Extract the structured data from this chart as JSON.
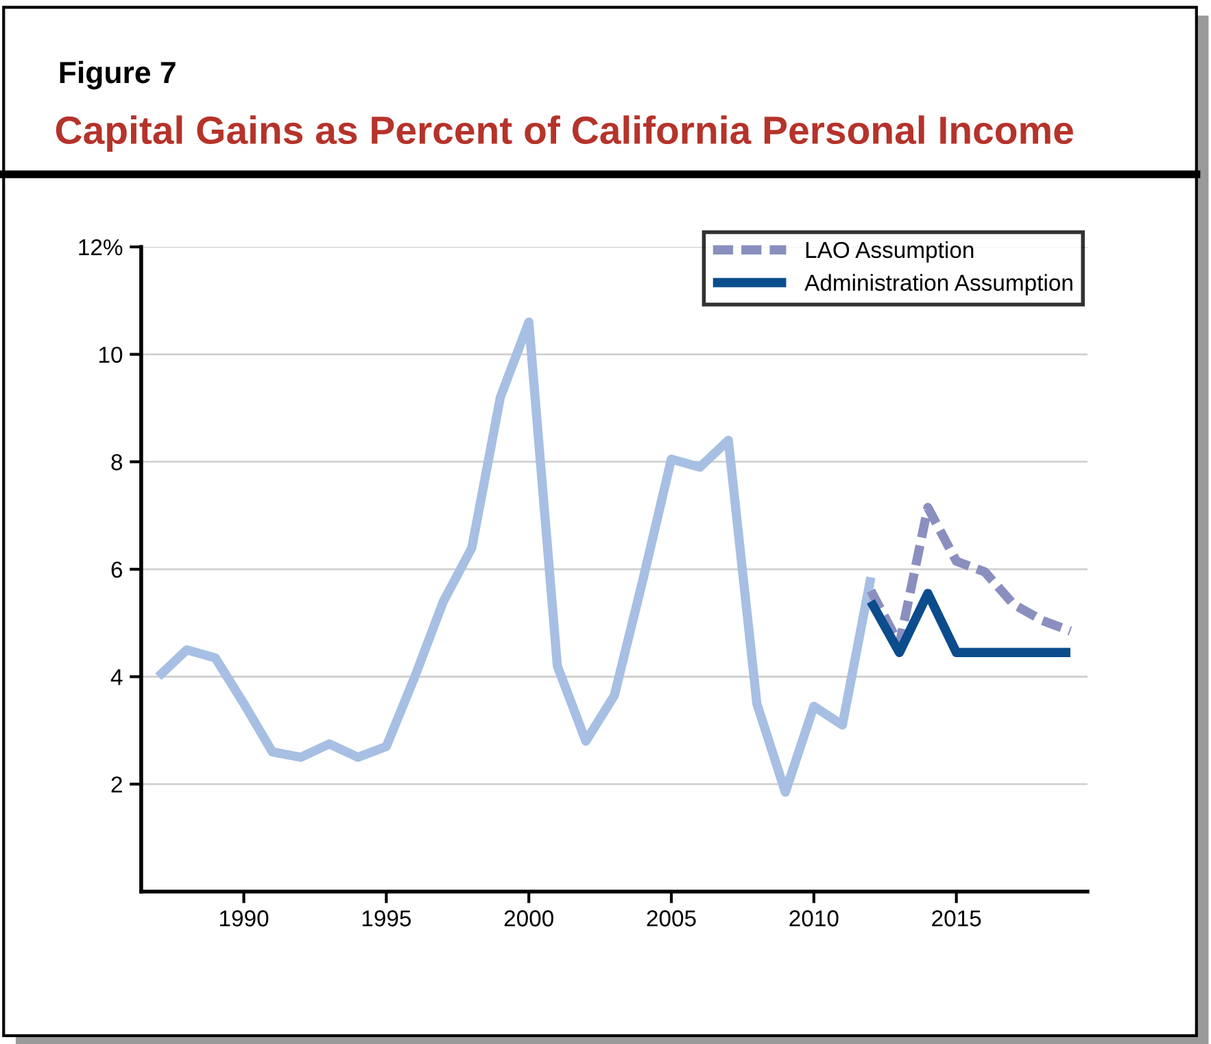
{
  "chart_data": {
    "type": "line",
    "title": "Capital Gains as Percent of California Personal Income",
    "subtitle": "Figure 7",
    "series": [
      {
        "x": [
          1987,
          1988,
          1989,
          1990,
          1991,
          1992,
          1993,
          1994,
          1995,
          1996,
          1997,
          1998,
          1999,
          2000,
          2001,
          2002,
          2003,
          2004,
          2005,
          2006,
          2007,
          2008,
          2009,
          2010,
          2011,
          2012
        ],
        "color": "#a6bfe3",
        "line_style": "solid",
        "values": [
          4.0,
          4.5,
          4.35,
          3.5,
          2.6,
          2.5,
          2.75,
          2.5,
          2.7,
          4.0,
          5.4,
          6.4,
          9.2,
          10.6,
          4.2,
          2.8,
          3.65,
          5.8,
          8.05,
          7.9,
          8.4,
          3.5,
          1.85,
          3.45,
          3.1,
          5.85
        ]
      },
      {
        "name": "LAO Assumption",
        "x": [
          2012,
          2013,
          2014,
          2015,
          2016,
          2017,
          2018,
          2019
        ],
        "color": "#8a8fbf",
        "line_style": "dashed",
        "values": [
          5.6,
          4.6,
          7.15,
          6.15,
          5.95,
          5.35,
          5.05,
          4.85
        ]
      },
      {
        "name": "Administration Assumption",
        "x": [
          2012,
          2013,
          2014,
          2015,
          2016,
          2017,
          2018,
          2019
        ],
        "color": "#0b4c8c",
        "line_style": "solid",
        "values": [
          5.4,
          4.45,
          5.55,
          4.45,
          4.45,
          4.45,
          4.45,
          4.45
        ]
      }
    ],
    "xlim": [
      1986.4,
      2019.6
    ],
    "xticks": [
      1990,
      1995,
      2000,
      2005,
      2010,
      2015
    ],
    "ylim": [
      0,
      12
    ],
    "yticks": [
      2,
      4,
      6,
      8,
      10,
      {
        "value": 12,
        "label": "12%"
      }
    ],
    "grid": "y",
    "legend": "top right",
    "marker": "none"
  }
}
